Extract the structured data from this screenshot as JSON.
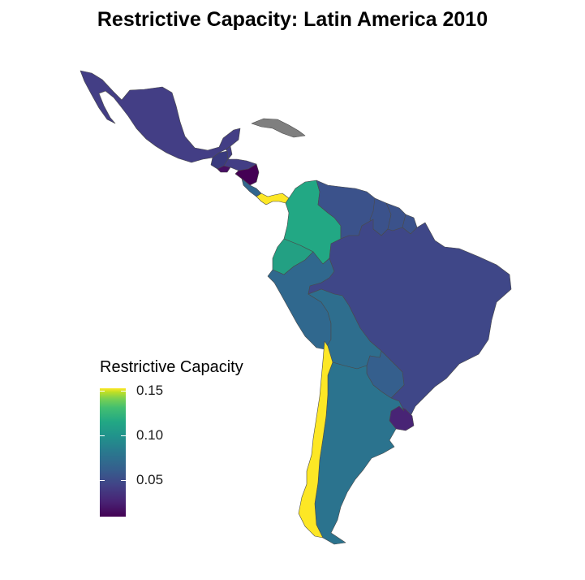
{
  "title": "Restrictive Capacity: Latin America 2010",
  "legend": {
    "title": "Restrictive Capacity",
    "ticks": [
      "0.15",
      "0.10",
      "0.05"
    ],
    "colors": [
      "#440154",
      "#414487",
      "#2a788e",
      "#22a884",
      "#7ad151",
      "#fde725"
    ]
  },
  "missing_color": "#7f7f7f",
  "countries": [
    {
      "name": "Mexico",
      "color": "#433e85"
    },
    {
      "name": "Guatemala",
      "color": "#3a3a7e"
    },
    {
      "name": "Belize",
      "color": "#433e85"
    },
    {
      "name": "El Salvador",
      "color": "#471063"
    },
    {
      "name": "Honduras",
      "color": "#433e85"
    },
    {
      "name": "Nicaragua",
      "color": "#440154"
    },
    {
      "name": "Costa Rica",
      "color": "#31668e"
    },
    {
      "name": "Panama",
      "color": "#fde725"
    },
    {
      "name": "Cuba",
      "color": "#7f7f7f"
    },
    {
      "name": "Colombia",
      "color": "#22a884"
    },
    {
      "name": "Venezuela",
      "color": "#3b528b"
    },
    {
      "name": "Guyana",
      "color": "#3b528b"
    },
    {
      "name": "Suriname",
      "color": "#3b528b"
    },
    {
      "name": "French Guiana",
      "color": "#3b528b"
    },
    {
      "name": "Ecuador",
      "color": "#23a083"
    },
    {
      "name": "Peru",
      "color": "#30688e"
    },
    {
      "name": "Brazil",
      "color": "#3f4788"
    },
    {
      "name": "Bolivia",
      "color": "#2e6e8e"
    },
    {
      "name": "Paraguay",
      "color": "#355f8d"
    },
    {
      "name": "Uruguay",
      "color": "#482475"
    },
    {
      "name": "Argentina",
      "color": "#2b738e"
    },
    {
      "name": "Chile",
      "color": "#fde725"
    }
  ]
}
